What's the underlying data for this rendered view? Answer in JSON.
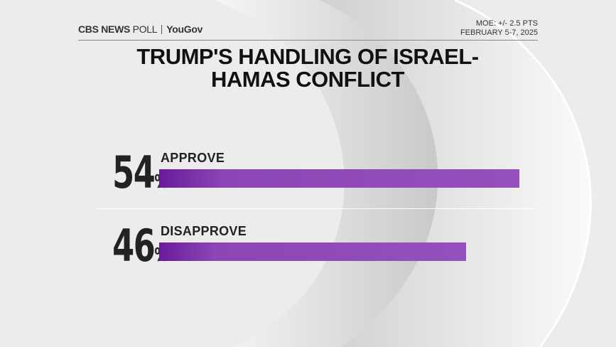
{
  "header": {
    "brand": "CBS NEWS",
    "brand_suffix": "POLL",
    "partner": "YouGov",
    "moe": "MOE: +/- 2.5 PTS",
    "dates": "FEBRUARY 5-7, 2025"
  },
  "chart_data": {
    "type": "bar",
    "orientation": "horizontal",
    "title": "TRUMP'S HANDLING OF ISRAEL-HAMAS CONFLICT",
    "categories": [
      "APPROVE",
      "DISAPPROVE"
    ],
    "values": [
      54,
      46
    ],
    "value_labels": [
      "54%",
      "46%"
    ],
    "color": "#8b45b5"
  }
}
